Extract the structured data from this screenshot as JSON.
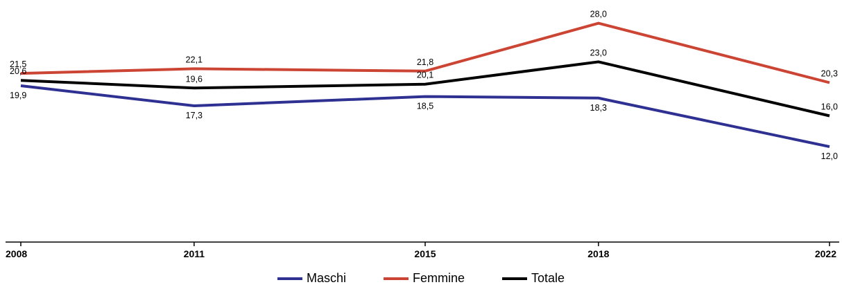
{
  "chart_data": {
    "type": "line",
    "x": [
      "2008",
      "2011",
      "2015",
      "2018",
      "2022"
    ],
    "series": [
      {
        "name": "Maschi",
        "color": "#2e3192",
        "values": [
          19.9,
          17.3,
          18.5,
          18.3,
          12.0
        ],
        "labels": [
          "19,9",
          "17,3",
          "18,5",
          "18,3",
          "12,0"
        ]
      },
      {
        "name": "Femmine",
        "color": "#cc4433",
        "values": [
          21.5,
          22.1,
          21.8,
          28.0,
          20.3
        ],
        "labels": [
          "21,5",
          "22,1",
          "21,8",
          "28,0",
          "20,3"
        ]
      },
      {
        "name": "Totale",
        "color": "#000000",
        "values": [
          20.6,
          19.6,
          20.1,
          23.0,
          16.0
        ],
        "labels": [
          "20,6",
          "19,6",
          "20,1",
          "23,0",
          "16,0"
        ]
      }
    ],
    "ylim": [
      0,
      30
    ],
    "grid": false,
    "legend": "bottom"
  }
}
